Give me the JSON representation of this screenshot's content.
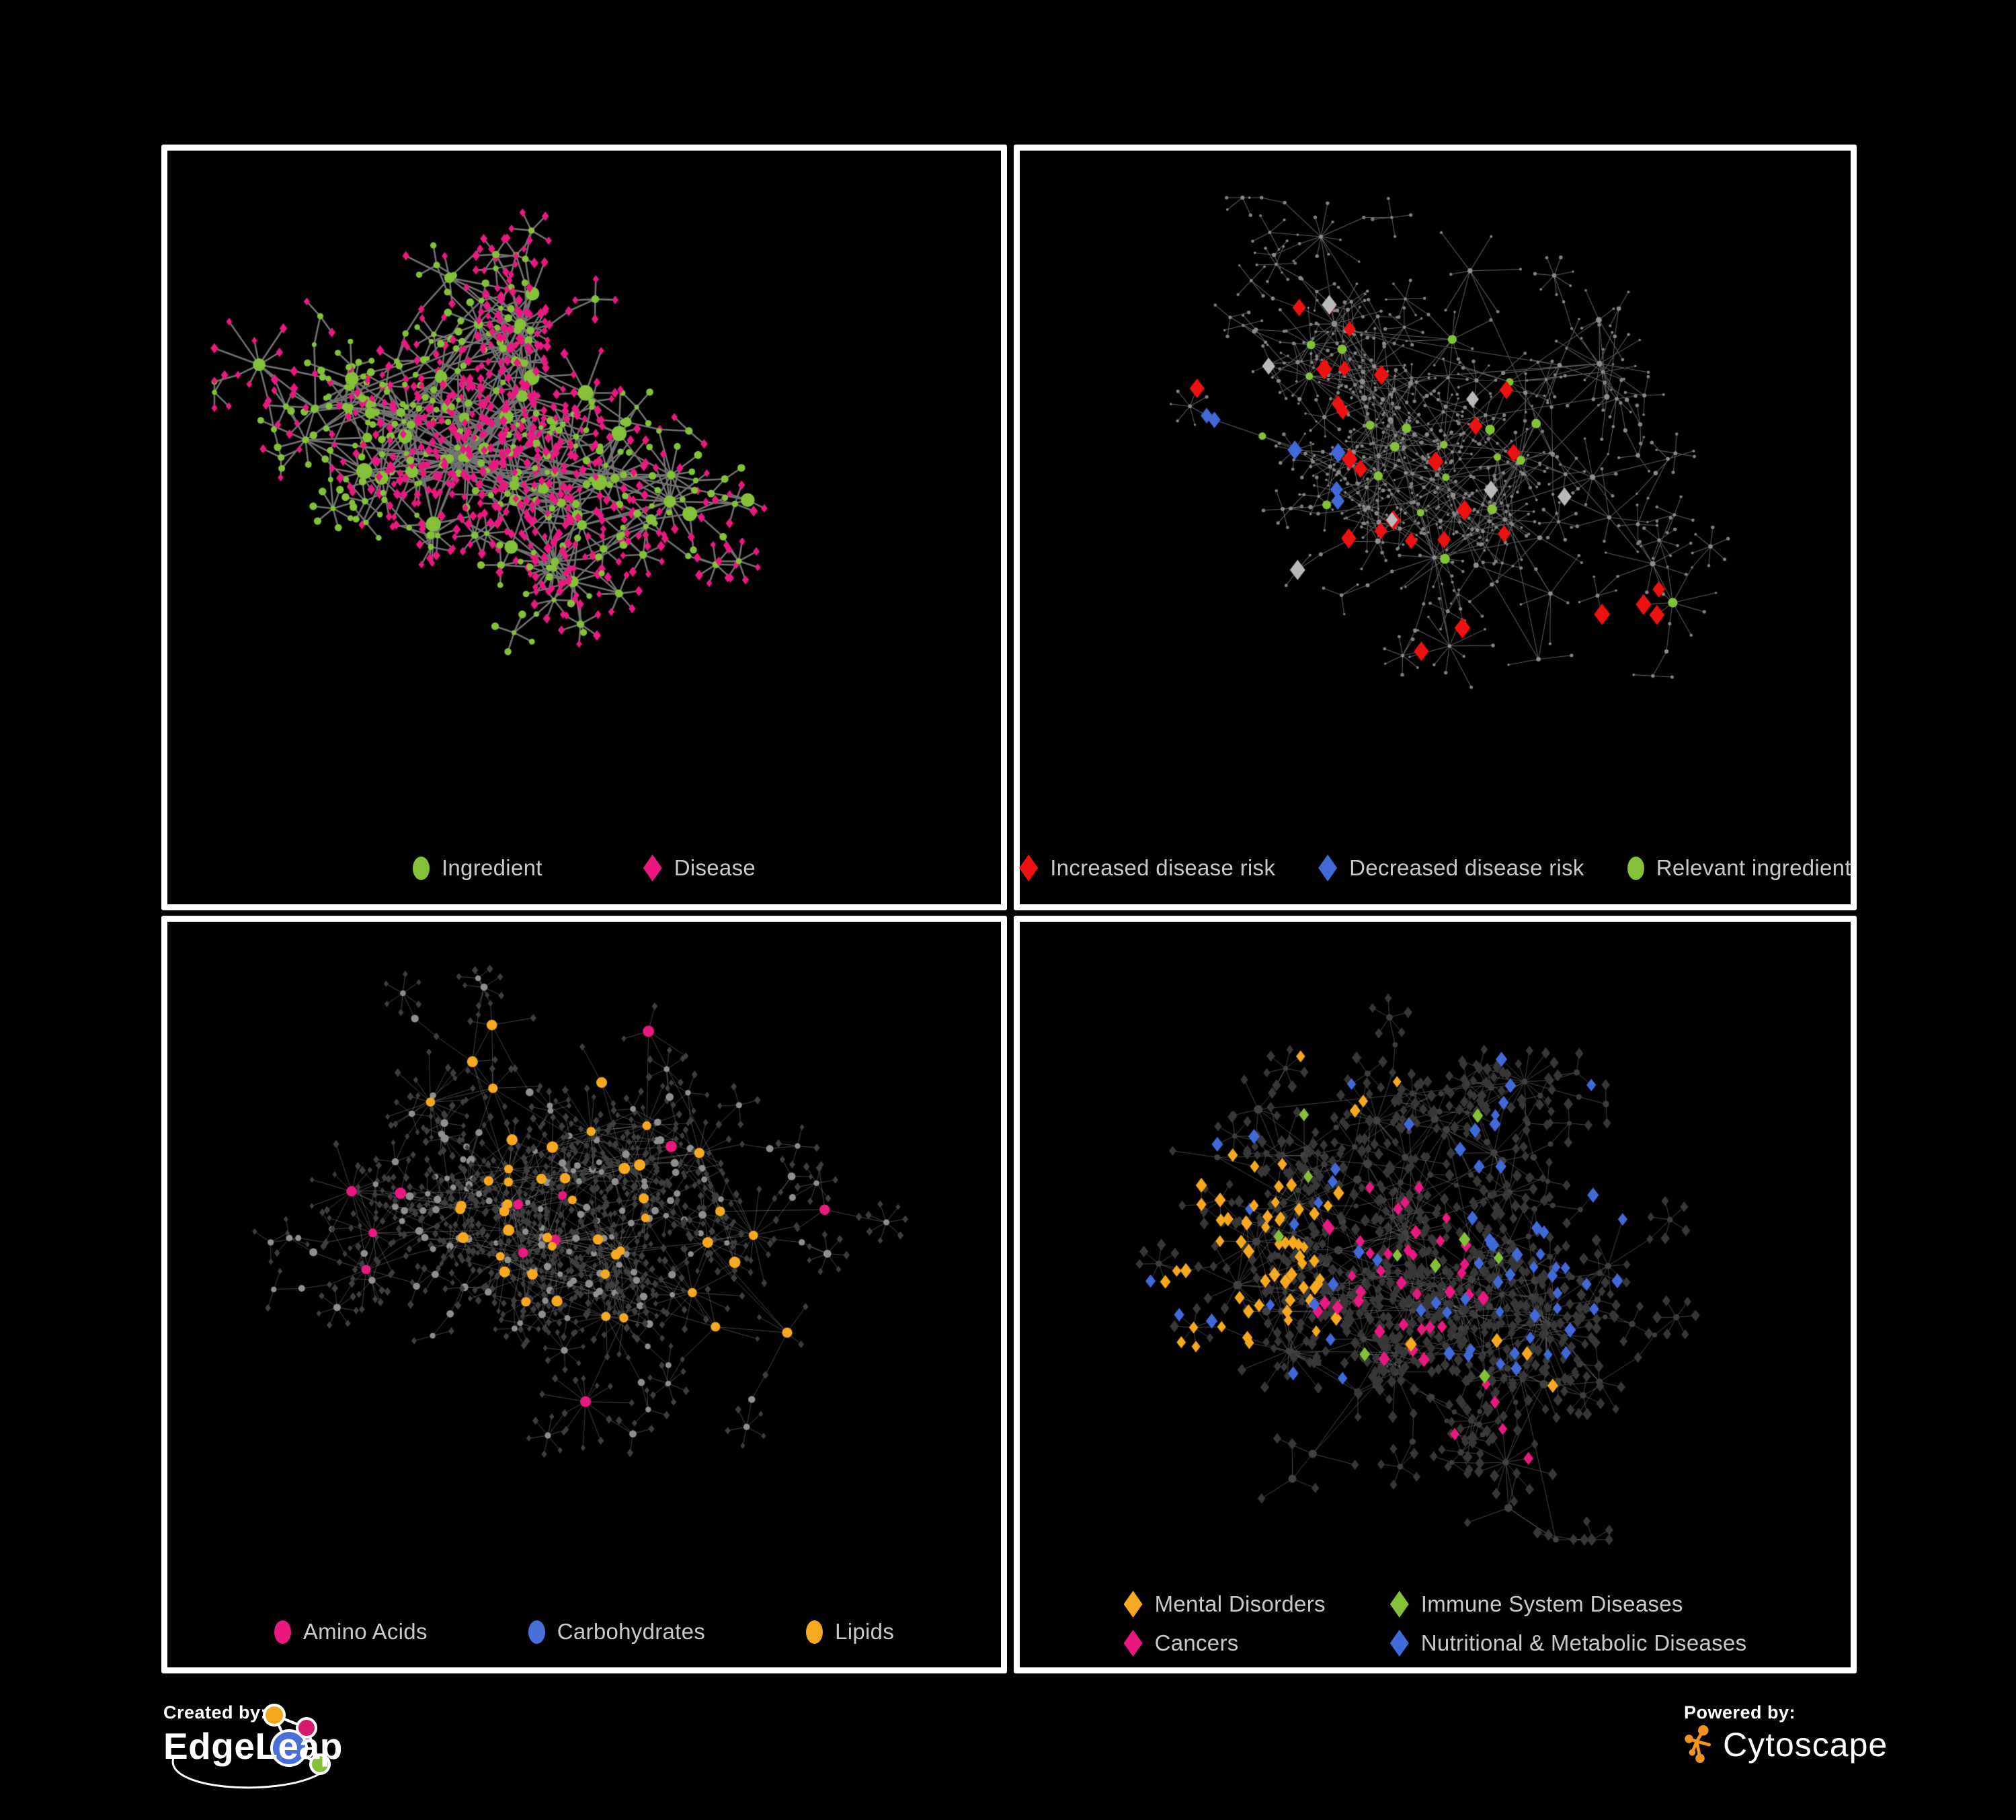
{
  "branding": {
    "created_by_label": "Created by:",
    "created_by_name": "EdgeLeap",
    "powered_by_label": "Powered by:",
    "powered_by_name": "Cytoscape",
    "edgeleap_colors": {
      "orange": "#f2a71f",
      "pink": "#d6186e",
      "blue": "#4a6fd8",
      "green": "#84c139"
    },
    "cytoscape_orange": "#f0941f"
  },
  "panels": [
    {
      "id": "ingredient-disease",
      "legend": [
        {
          "label": "Ingredient",
          "shape": "circle",
          "color": "#84c139"
        },
        {
          "label": "Disease",
          "shape": "diamond",
          "color": "#e9197f"
        }
      ],
      "network": {
        "seed": 11,
        "hubs": 56,
        "hubStep": 118,
        "maxFan": 13,
        "leafDist": 54,
        "subFrac": 0.2,
        "margins": [
          70,
          70,
          180,
          70
        ],
        "base": {
          "hub": {
            "shape": "circle",
            "color": "#84c139",
            "sizeMin": 4.5,
            "sizeMax": 12
          },
          "sub": {
            "shape": "circle",
            "color": "#84c139",
            "sizeMin": 3.5,
            "sizeMax": 6
          },
          "leaf": {
            "shape": "diamond",
            "color": "#e9197f",
            "sizeMin": 4.5,
            "sizeMax": 6.5
          },
          "leafAlt": {
            "frac": 0.24,
            "shape": "circle",
            "color": "#84c139",
            "sizeMin": 4,
            "sizeMax": 6
          }
        },
        "edge": {
          "color": "#777777",
          "width": 2.6,
          "opacity": 0.95
        },
        "highlights": []
      }
    },
    {
      "id": "disease-risk",
      "legend": [
        {
          "label": "Increased disease risk",
          "shape": "diamond",
          "color": "#ee1111"
        },
        {
          "label": "Decreased disease risk",
          "shape": "diamond",
          "color": "#4169d8"
        },
        {
          "label": "Relevant ingredient",
          "shape": "circle",
          "color": "#84c139"
        }
      ],
      "network": {
        "seed": 23,
        "hubs": 58,
        "hubStep": 122,
        "maxFan": 12,
        "leafDist": 52,
        "subFrac": 0.22,
        "margins": [
          70,
          70,
          180,
          70
        ],
        "base": {
          "hub": {
            "shape": "circle",
            "color": "#8f8f8f",
            "sizeMin": 2.6,
            "sizeMax": 4.6
          },
          "sub": {
            "shape": "circle",
            "color": "#8a8a8a",
            "sizeMin": 2.2,
            "sizeMax": 3.4
          },
          "leaf": {
            "shape": "circle",
            "color": "#828282",
            "sizeMin": 1.7,
            "sizeMax": 2.8
          }
        },
        "edge": {
          "color": "#969696",
          "width": 1.05,
          "opacity": 0.62
        },
        "highlights": [
          {
            "target": "leaf",
            "shape": "diamond",
            "color": "#ee1111",
            "size": 11,
            "count": 24,
            "region": [
              0.42,
              0.46,
              0.3
            ]
          },
          {
            "target": "leaf",
            "shape": "diamond",
            "color": "#ee1111",
            "size": 11,
            "count": 4,
            "region": [
              0.8,
              0.82,
              0.13
            ]
          },
          {
            "target": "leaf",
            "shape": "diamond",
            "color": "#b9b9b9",
            "size": 10.5,
            "count": 7,
            "region": [
              0.47,
              0.52,
              0.33
            ]
          },
          {
            "target": "leaf",
            "shape": "diamond",
            "color": "#4169d8",
            "size": 10.5,
            "count": 6,
            "region": [
              0.24,
              0.5,
              0.14
            ]
          },
          {
            "target": "leaf",
            "shape": "diamond",
            "color": "#4169d8",
            "size": 10.5,
            "count": 2,
            "region": [
              0.93,
              0.36,
              0.06
            ]
          },
          {
            "target": "hub",
            "shape": "circle",
            "color": "#84c139",
            "size": 6.5,
            "count": 20,
            "region": [
              0.43,
              0.5,
              0.28
            ]
          },
          {
            "target": "hub",
            "shape": "circle",
            "color": "#84c139",
            "size": 6.5,
            "count": 3,
            "region": [
              0.8,
              0.8,
              0.12
            ]
          },
          {
            "target": "hub",
            "shape": "circle",
            "color": "#84c139",
            "size": 6,
            "count": 2,
            "region": [
              0.9,
              0.38,
              0.08
            ]
          }
        ]
      }
    },
    {
      "id": "ingredient-classes",
      "legend": [
        {
          "label": "Amino Acids",
          "shape": "circle",
          "color": "#e9197f"
        },
        {
          "label": "Carbohydrates",
          "shape": "circle",
          "color": "#4a6fd8"
        },
        {
          "label": "Lipids",
          "shape": "circle",
          "color": "#f6a91f"
        }
      ],
      "network": {
        "seed": 37,
        "hubs": 58,
        "hubStep": 120,
        "maxFan": 15,
        "leafDist": 52,
        "subFrac": 0.24,
        "margins": [
          70,
          70,
          180,
          70
        ],
        "base": {
          "hub": {
            "shape": "circle",
            "color": "#9d9d9d",
            "sizeMin": 4.5,
            "sizeMax": 10
          },
          "sub": {
            "shape": "circle",
            "color": "#8f8f8f",
            "sizeMin": 4,
            "sizeMax": 6
          },
          "leaf": {
            "shape": "diamond",
            "color": "#3e3e3e",
            "sizeMin": 3.6,
            "sizeMax": 5.2
          }
        },
        "edge": {
          "color": "#c0c0c0",
          "width": 1,
          "opacity": 0.34
        },
        "highlights": [
          {
            "target": "hub",
            "shape": "circle",
            "color": "#f6a91f",
            "size": 7.5,
            "count": 34,
            "region": [
              0.47,
              0.4,
              0.2
            ]
          },
          {
            "target": "hub",
            "shape": "circle",
            "color": "#f6a91f",
            "size": 7.5,
            "count": 12,
            "region": [
              0.42,
              0.16,
              0.17
            ]
          },
          {
            "target": "hub",
            "shape": "circle",
            "color": "#f6a91f",
            "size": 7.5,
            "count": 10,
            "region": [
              0.6,
              0.62,
              0.12
            ]
          },
          {
            "target": "hub",
            "shape": "circle",
            "color": "#f6a91f",
            "size": 7.5,
            "count": 8,
            "region": [
              0.72,
              0.55,
              0.14
            ]
          },
          {
            "target": "hub",
            "shape": "circle",
            "color": "#e9197f",
            "size": 7.5,
            "count": 16,
            "region": [
              0.5,
              0.58,
              0.52
            ]
          },
          {
            "target": "hub",
            "shape": "circle",
            "color": "#4a6fd8",
            "size": 7.5,
            "count": 8,
            "region": [
              0.55,
              0.42,
              0.17
            ]
          },
          {
            "target": "hub",
            "shape": "circle",
            "color": "#4a6fd8",
            "size": 7.5,
            "count": 4,
            "region": [
              0.22,
              0.12,
              0.2
            ]
          },
          {
            "target": "hub",
            "shape": "circle",
            "color": "#4a6fd8",
            "size": 7,
            "count": 2,
            "region": [
              0.7,
              0.6,
              0.12
            ]
          }
        ]
      }
    },
    {
      "id": "disease-classes",
      "legend": [
        {
          "label": "Mental Disorders",
          "shape": "diamond",
          "color": "#f6a91f"
        },
        {
          "label": "Immune System Diseases",
          "shape": "diamond",
          "color": "#84c139"
        },
        {
          "label": "Cancers",
          "shape": "diamond",
          "color": "#e9197f"
        },
        {
          "label": "Nutritional & Metabolic Diseases",
          "shape": "diamond",
          "color": "#4169d8"
        }
      ],
      "network": {
        "seed": 47,
        "hubs": 60,
        "hubStep": 120,
        "maxFan": 15,
        "leafDist": 52,
        "subFrac": 0.24,
        "margins": [
          70,
          70,
          190,
          70
        ],
        "base": {
          "hub": {
            "shape": "circle",
            "color": "#414141",
            "sizeMin": 4,
            "sizeMax": 6.5
          },
          "sub": {
            "shape": "circle",
            "color": "#3d3d3d",
            "sizeMin": 3.5,
            "sizeMax": 5
          },
          "leaf": {
            "shape": "diamond",
            "color": "#373737",
            "sizeMin": 5.5,
            "sizeMax": 7.5
          }
        },
        "edge": {
          "color": "#a8a8a8",
          "width": 1,
          "opacity": 0.4
        },
        "highlights": [
          {
            "target": "leaf",
            "shape": "diamond",
            "color": "#f6a91f",
            "size": 8,
            "count": 52,
            "region": [
              0.21,
              0.5,
              0.14
            ]
          },
          {
            "target": "leaf",
            "shape": "diamond",
            "color": "#f6a91f",
            "size": 8,
            "count": 10,
            "region": [
              0.28,
              0.24,
              0.18
            ]
          },
          {
            "target": "leaf",
            "shape": "diamond",
            "color": "#f6a91f",
            "size": 8,
            "count": 6,
            "region": [
              0.5,
              0.74,
              0.22
            ]
          },
          {
            "target": "leaf",
            "shape": "diamond",
            "color": "#e9197f",
            "size": 8,
            "count": 36,
            "region": [
              0.45,
              0.54,
              0.13
            ]
          },
          {
            "target": "leaf",
            "shape": "diamond",
            "color": "#e9197f",
            "size": 8,
            "count": 8,
            "region": [
              0.87,
              0.28,
              0.1
            ]
          },
          {
            "target": "leaf",
            "shape": "diamond",
            "color": "#e9197f",
            "size": 8,
            "count": 6,
            "region": [
              0.5,
              0.86,
              0.16
            ]
          },
          {
            "target": "leaf",
            "shape": "diamond",
            "color": "#4169d8",
            "size": 8,
            "count": 24,
            "region": [
              0.6,
              0.6,
              0.12
            ]
          },
          {
            "target": "leaf",
            "shape": "diamond",
            "color": "#4169d8",
            "size": 8,
            "count": 22,
            "region": [
              0.74,
              0.33,
              0.22
            ]
          },
          {
            "target": "leaf",
            "shape": "diamond",
            "color": "#4169d8",
            "size": 8,
            "count": 14,
            "region": [
              0.33,
              0.26,
              0.25
            ]
          },
          {
            "target": "leaf",
            "shape": "diamond",
            "color": "#4169d8",
            "size": 8,
            "count": 8,
            "region": [
              0.2,
              0.76,
              0.2
            ]
          },
          {
            "target": "leaf",
            "shape": "diamond",
            "color": "#84c139",
            "size": 8,
            "count": 10,
            "region": [
              0.5,
              0.5,
              0.5
            ]
          }
        ]
      }
    }
  ]
}
